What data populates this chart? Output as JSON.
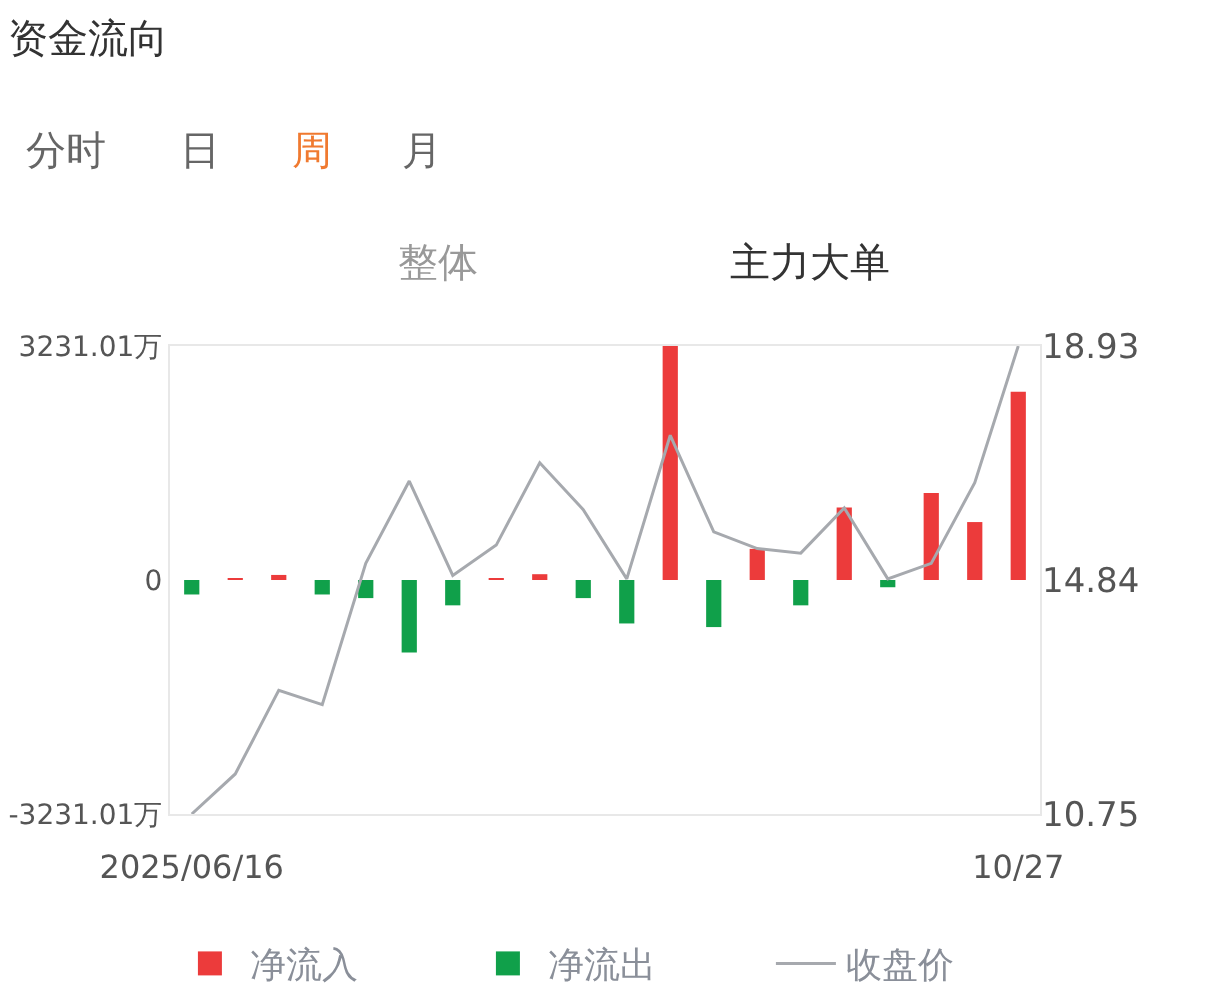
{
  "chart_data": {
    "type": "bar",
    "title": "资金流向",
    "annotations": [
      "分时",
      "日",
      "周",
      "月",
      "整体",
      "主力大单"
    ],
    "categories": [
      "2025/06/16",
      null,
      null,
      null,
      null,
      null,
      null,
      null,
      null,
      null,
      null,
      null,
      null,
      null,
      null,
      null,
      null,
      null,
      null,
      "10/27"
    ],
    "series": [
      {
        "name": "净流入",
        "color": "#ec3b3b",
        "values": [
          null,
          20,
          70,
          null,
          null,
          null,
          null,
          20,
          80,
          null,
          null,
          3231.01,
          null,
          430,
          null,
          1000,
          null,
          1200,
          800,
          2600
        ]
      },
      {
        "name": "净流出",
        "color": "#10a04a",
        "values": [
          -200,
          null,
          null,
          -200,
          -250,
          -1000,
          -350,
          null,
          null,
          -250,
          -600,
          null,
          -650,
          null,
          -350,
          null,
          -100,
          null,
          null,
          null
        ]
      },
      {
        "name": "收盘价",
        "type": "line",
        "axis": "y2",
        "color": "#a6a9ae",
        "values": [
          10.75,
          11.45,
          12.91,
          12.66,
          15.13,
          16.57,
          14.92,
          15.45,
          16.89,
          16.07,
          14.86,
          17.37,
          15.68,
          15.39,
          15.31,
          16.1,
          14.86,
          15.13,
          16.54,
          18.93
        ]
      }
    ],
    "ylim": [
      -3231.01,
      3231.01
    ],
    "yticks": [
      {
        "value": 3231.01,
        "label": "3231.01万"
      },
      0,
      {
        "value": -3231.01,
        "label": "-3231.01万"
      }
    ],
    "y2lim": [
      10.75,
      18.93
    ],
    "y2ticks": [
      18.93,
      14.84,
      10.75
    ],
    "legend": "bottom",
    "marker": "none"
  }
}
